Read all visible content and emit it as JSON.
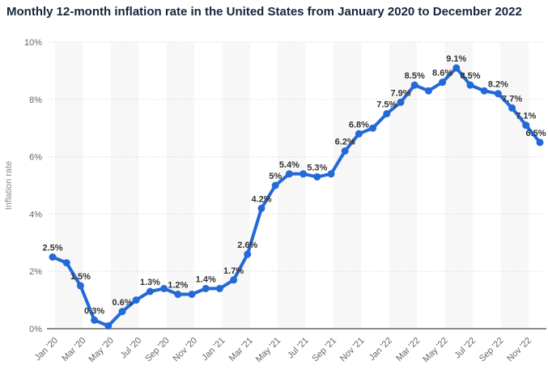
{
  "title": "Monthly 12-month inflation rate in the United States from January 2020 to December 2022",
  "colors": {
    "title_text": "#16253c",
    "line": "#2369d7",
    "marker": "#2369d7",
    "data_label": "#333333",
    "axis_text": "#666666",
    "y_axis_title_text": "#8c8c8c",
    "gridline": "#d8d8d8",
    "baseline": "#8c8c8c",
    "band": "#f7f7f7",
    "background": "#ffffff"
  },
  "chart_data": {
    "type": "line",
    "title": "Monthly 12-month inflation rate in the United States from January 2020 to December 2022",
    "xlabel": "",
    "ylabel": "Inflation rate",
    "ylim": [
      0,
      10
    ],
    "grid": "horizontal-dotted",
    "legend": "none",
    "background_bands": "alternating vertical light-gray stripes, 2 months wide",
    "y_ticks": [
      {
        "value": 0,
        "label": "0%"
      },
      {
        "value": 2,
        "label": "2%"
      },
      {
        "value": 4,
        "label": "4%"
      },
      {
        "value": 6,
        "label": "6%"
      },
      {
        "value": 8,
        "label": "8%"
      },
      {
        "value": 10,
        "label": "10%"
      }
    ],
    "x_tick_labels": [
      "Jan '20",
      "Mar '20",
      "May '20",
      "Jul '20",
      "Sep '20",
      "Nov '20",
      "Jan '21",
      "Mar '21",
      "May '21",
      "Jul '21",
      "Sep '21",
      "Nov '21",
      "Jan '22",
      "Mar '22",
      "May '22",
      "Jul '22",
      "Sep '22",
      "Nov '22"
    ],
    "x": [
      "Jan '20",
      "Feb '20",
      "Mar '20",
      "Apr '20",
      "May '20",
      "Jun '20",
      "Jul '20",
      "Aug '20",
      "Sep '20",
      "Oct '20",
      "Nov '20",
      "Dec '20",
      "Jan '21",
      "Feb '21",
      "Mar '21",
      "Apr '21",
      "May '21",
      "Jun '21",
      "Jul '21",
      "Aug '21",
      "Sep '21",
      "Oct '21",
      "Nov '21",
      "Dec '21",
      "Jan '22",
      "Feb '22",
      "Mar '22",
      "Apr '22",
      "May '22",
      "Jun '22",
      "Jul '22",
      "Aug '22",
      "Sep '22",
      "Oct '22",
      "Nov '22",
      "Dec '22"
    ],
    "series": [
      {
        "name": "Inflation rate",
        "values": [
          2.5,
          2.3,
          1.5,
          0.3,
          0.1,
          0.6,
          1.0,
          1.3,
          1.4,
          1.2,
          1.2,
          1.4,
          1.4,
          1.7,
          2.6,
          4.2,
          5.0,
          5.4,
          5.4,
          5.3,
          5.4,
          6.2,
          6.8,
          7.0,
          7.5,
          7.9,
          8.5,
          8.3,
          8.6,
          9.1,
          8.5,
          8.3,
          8.2,
          7.7,
          7.1,
          6.5
        ]
      }
    ],
    "point_labels": [
      "2.5%",
      null,
      "1.5%",
      "0.3%",
      null,
      "0.6%",
      null,
      "1.3%",
      null,
      "1.2%",
      null,
      "1.4%",
      null,
      "1.7%",
      "2.6%",
      "4.2%",
      "5%",
      "5.4%",
      null,
      "5.3%",
      null,
      "6.2%",
      "6.8%",
      null,
      "7.5%",
      "7.9%",
      "8.5%",
      null,
      "8.6%",
      "9.1%",
      "8.5%",
      null,
      "8.2%",
      "7.7%",
      "7.1%",
      "6.5%"
    ]
  }
}
